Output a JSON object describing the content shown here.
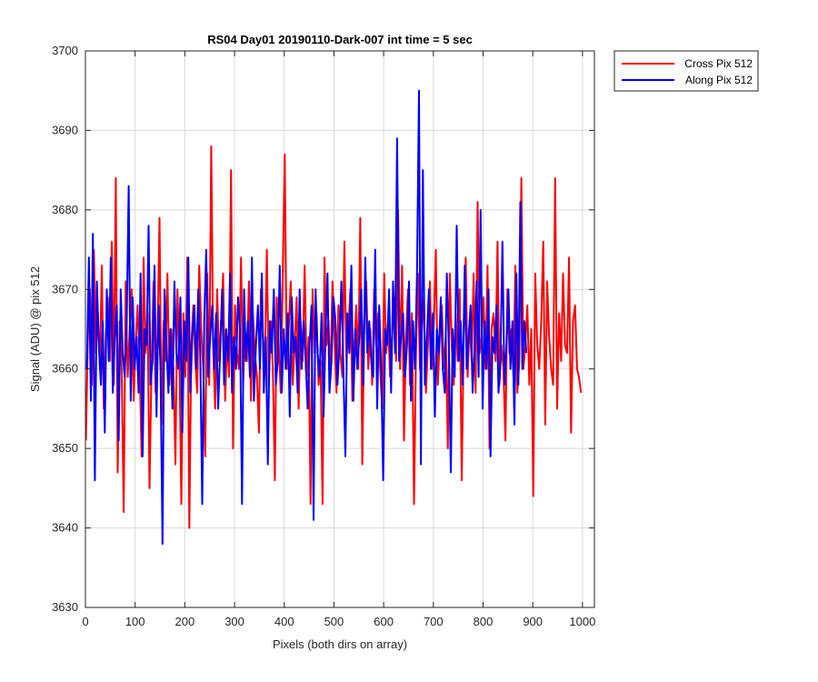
{
  "chart_data": {
    "type": "line",
    "title": "RS04 Day01 20190110-Dark-007 int time = 5 sec",
    "xlabel": "Pixels (both dirs on array)",
    "ylabel": "Signal (ADU) @ pix 512",
    "xlim": [
      0,
      1024
    ],
    "ylim": [
      3630,
      3700
    ],
    "xticks": [
      0,
      100,
      200,
      300,
      400,
      500,
      600,
      700,
      800,
      900,
      1000
    ],
    "yticks": [
      3630,
      3640,
      3650,
      3660,
      3670,
      3680,
      3690,
      3700
    ],
    "grid": true,
    "legend_position": "outside-top-right",
    "series": [
      {
        "name": "Cross Pix 512",
        "color": "#ff0000",
        "x_start": 1,
        "x_step": 4,
        "values": [
          3651,
          3664,
          3670,
          3658,
          3675,
          3662,
          3667,
          3660,
          3673,
          3655,
          3664,
          3669,
          3661,
          3676,
          3658,
          3684,
          3647,
          3666,
          3660,
          3642,
          3671,
          3659,
          3665,
          3670,
          3656,
          3663,
          3668,
          3661,
          3649,
          3674,
          3662,
          3667,
          3645,
          3660,
          3671,
          3657,
          3664,
          3679,
          3653,
          3666,
          3661,
          3672,
          3658,
          3665,
          3660,
          3648,
          3670,
          3662,
          3643,
          3667,
          3659,
          3674,
          3640,
          3663,
          3668,
          3661,
          3657,
          3673,
          3665,
          3660,
          3649,
          3672,
          3658,
          3688,
          3663,
          3655,
          3670,
          3661,
          3666,
          3672,
          3656,
          3664,
          3659,
          3685,
          3650,
          3668,
          3662,
          3660,
          3674,
          3658,
          3665,
          3661,
          3671,
          3656,
          3667,
          3662,
          3659,
          3652,
          3670,
          3664,
          3661,
          3675,
          3658,
          3666,
          3660,
          3646,
          3669,
          3663,
          3657,
          3672,
          3687,
          3660,
          3665,
          3671,
          3658,
          3663,
          3669,
          3655,
          3666,
          3661,
          3673,
          3659,
          3664,
          3643,
          3670,
          3662,
          3667,
          3658,
          3661,
          3643,
          3674,
          3663,
          3666,
          3659,
          3671,
          3664,
          3657,
          3668,
          3662,
          3659,
          3676,
          3661,
          3665,
          3670,
          3656,
          3663,
          3668,
          3660,
          3679,
          3648,
          3666,
          3671,
          3660,
          3665,
          3658,
          3670,
          3663,
          3667,
          3660,
          3655,
          3672,
          3662,
          3666,
          3659,
          3664,
          3669,
          3661,
          3680,
          3660,
          3673,
          3651,
          3664,
          3670,
          3658,
          3667,
          3643,
          3662,
          3672,
          3660,
          3665,
          3669,
          3657,
          3663,
          3671,
          3660,
          3666,
          3675,
          3658,
          3664,
          3668,
          3660,
          3664,
          3650,
          3672,
          3663,
          3658,
          3667,
          3661,
          3670,
          3646,
          3664,
          3674,
          3659,
          3666,
          3661,
          3672,
          3657,
          3681,
          3662,
          3664,
          3669,
          3660,
          3673,
          3650,
          3665,
          3667,
          3661,
          3676,
          3658,
          3663,
          3660,
          3651,
          3670,
          3662,
          3665,
          3659,
          3673,
          3657,
          3661,
          3684,
          3660,
          3663,
          3668,
          3658,
          3665,
          3644,
          3672,
          3663,
          3660,
          3666,
          3676,
          3653,
          3671,
          3664,
          3660,
          3658,
          3684,
          3655,
          3667,
          3661,
          3672,
          3663,
          3662,
          3674,
          3652,
          3666,
          3668,
          3660,
          3659,
          3657
        ]
      },
      {
        "name": "Along Pix 512",
        "color": "#0000ff",
        "x_start": 3,
        "x_step": 4,
        "values": [
          3660,
          3674,
          3656,
          3677,
          3646,
          3671,
          3663,
          3658,
          3666,
          3652,
          3670,
          3661,
          3674,
          3657,
          3664,
          3668,
          3651,
          3670,
          3662,
          3659,
          3666,
          3683,
          3656,
          3669,
          3660,
          3664,
          3657,
          3672,
          3649,
          3665,
          3663,
          3678,
          3658,
          3661,
          3673,
          3654,
          3668,
          3660,
          3638,
          3670,
          3663,
          3657,
          3665,
          3655,
          3671,
          3662,
          3660,
          3669,
          3652,
          3666,
          3661,
          3674,
          3657,
          3664,
          3668,
          3660,
          3670,
          3662,
          3643,
          3666,
          3675,
          3659,
          3664,
          3668,
          3660,
          3667,
          3655,
          3662,
          3670,
          3658,
          3665,
          3661,
          3672,
          3657,
          3664,
          3660,
          3669,
          3665,
          3643,
          3670,
          3661,
          3666,
          3659,
          3674,
          3656,
          3663,
          3668,
          3660,
          3672,
          3657,
          3664,
          3648,
          3666,
          3662,
          3670,
          3658,
          3661,
          3673,
          3657,
          3665,
          3660,
          3667,
          3654,
          3669,
          3662,
          3664,
          3657,
          3670,
          3660,
          3666,
          3661,
          3655,
          3663,
          3668,
          3641,
          3670,
          3662,
          3659,
          3667,
          3654,
          3664,
          3672,
          3657,
          3661,
          3669,
          3666,
          3658,
          3663,
          3671,
          3660,
          3649,
          3667,
          3662,
          3673,
          3656,
          3665,
          3660,
          3664,
          3670,
          3658,
          3674,
          3662,
          3666,
          3661,
          3659,
          3675,
          3655,
          3668,
          3660,
          3646,
          3665,
          3663,
          3670,
          3657,
          3671,
          3662,
          3689,
          3661,
          3664,
          3667,
          3659,
          3663,
          3671,
          3656,
          3666,
          3660,
          3672,
          3695,
          3648,
          3685,
          3658,
          3664,
          3670,
          3660,
          3667,
          3654,
          3665,
          3662,
          3669,
          3660,
          3657,
          3672,
          3663,
          3647,
          3665,
          3659,
          3678,
          3661,
          3666,
          3658,
          3673,
          3660,
          3664,
          3668,
          3657,
          3663,
          3671,
          3659,
          3680,
          3655,
          3666,
          3660,
          3670,
          3649,
          3664,
          3662,
          3668,
          3657,
          3661,
          3676,
          3658,
          3663,
          3670,
          3660,
          3666,
          3653,
          3672,
          3658,
          3681,
          3660,
          3666,
          3662
        ]
      }
    ]
  }
}
